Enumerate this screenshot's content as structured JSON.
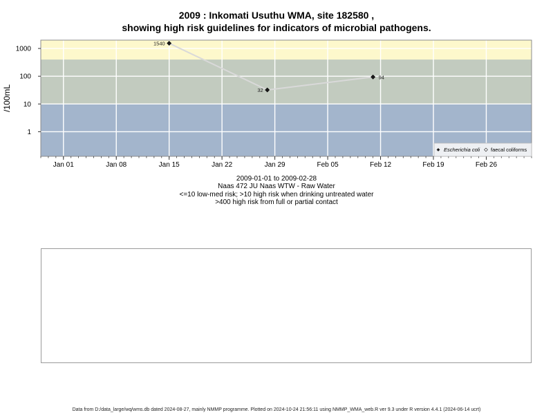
{
  "titles": {
    "line1": "2009 : Inkomati Usuthu WMA, site 182580 ,",
    "line2": "showing high risk guidelines for indicators of microbial pathogens."
  },
  "captions": {
    "line1": "2009-01-01 to 2009-02-28",
    "line2": "Naas 472 JU Naas WTW - Raw Water",
    "line3": "<=10 low-med risk; >10 high risk when drinking untreated water",
    "line4": ">400 high risk from full or partial contact"
  },
  "footer": "Data from D:/data_large/wq/wms.db dated 2024-08-27, mainly NMMP programme. Plotted on 2024-10-24 21:56:11 using NMMP_WMA_web.R ver 9.3 under R version 4.4.1 (2024-06-14 ucrt)",
  "chart_data": {
    "type": "line",
    "title": "2009 : Inkomati Usuthu WMA, site 182580 , showing high risk guidelines for indicators of microbial pathogens.",
    "ylabel": "/100mL",
    "xlabel": "",
    "y_scale": "log10",
    "ylim": [
      0.13,
      2000
    ],
    "xlim": [
      "2008-12-29",
      "2009-03-04"
    ],
    "grid": true,
    "y_ticks": [
      1,
      10,
      100,
      1000
    ],
    "y_tick_labels": [
      "1",
      "10",
      "100",
      "1000"
    ],
    "x_ticks": [
      "2009-01-01",
      "2009-01-08",
      "2009-01-15",
      "2009-01-22",
      "2009-01-29",
      "2009-02-05",
      "2009-02-12",
      "2009-02-19",
      "2009-02-26"
    ],
    "x_tick_labels": [
      "Jan 01",
      "Jan 08",
      "Jan 15",
      "Jan 22",
      "Jan 29",
      "Feb 05",
      "Feb 12",
      "Feb 19",
      "Feb 26"
    ],
    "bands": [
      {
        "from": 0.13,
        "to": 10,
        "color": "#a3b5cc"
      },
      {
        "from": 10,
        "to": 400,
        "color": "#c2cbbf"
      },
      {
        "from": 400,
        "to": 2000,
        "color": "#fdf8cc"
      }
    ],
    "series": [
      {
        "name": "Escherichia coli",
        "marker": "filled-diamond",
        "line_color": "#d9d9d9",
        "points": [
          {
            "x": "2009-01-15",
            "y": 1540,
            "label": "1540"
          },
          {
            "x": "2009-01-28",
            "y": 32,
            "label": "32"
          },
          {
            "x": "2009-02-11",
            "y": 94,
            "label": "94"
          }
        ]
      },
      {
        "name": "faecal coliforms",
        "marker": "open-diamond",
        "points": []
      }
    ],
    "legend": {
      "position": "bottom-right",
      "entries": [
        "Escherichia coli",
        "faecal coliforms"
      ]
    }
  }
}
